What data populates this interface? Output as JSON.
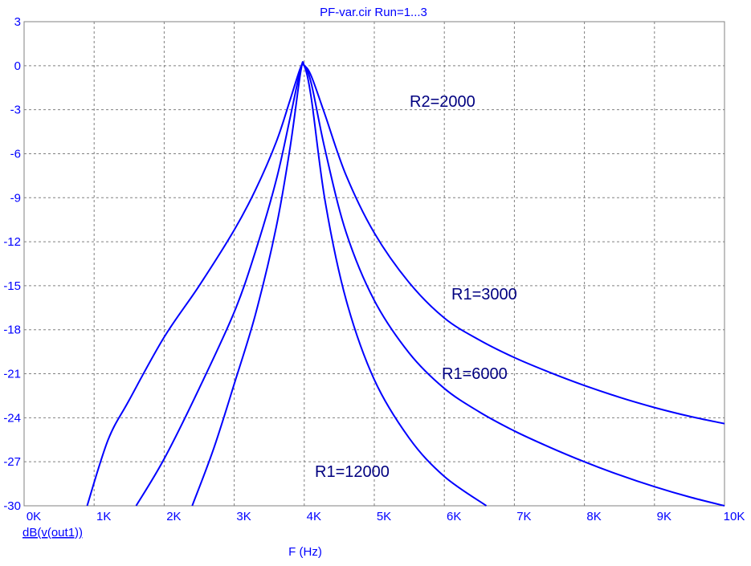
{
  "chart_data": {
    "type": "line",
    "title": "PF-var.cir Run=1...3",
    "xlabel": "F (Hz)",
    "ylabel": "",
    "trace_label": "dB(v(out1))",
    "xlim": [
      0,
      10000
    ],
    "ylim": [
      -30,
      3
    ],
    "x_ticks": [
      0,
      1000,
      2000,
      3000,
      4000,
      5000,
      6000,
      7000,
      8000,
      9000,
      10000
    ],
    "x_tick_labels": [
      "0K",
      "1K",
      "2K",
      "3K",
      "4K",
      "5K",
      "6K",
      "7K",
      "8K",
      "9K",
      "10K"
    ],
    "y_ticks": [
      3,
      0,
      -3,
      -6,
      -9,
      -12,
      -15,
      -18,
      -21,
      -24,
      -27,
      -30
    ],
    "y_tick_labels": [
      "3",
      "0",
      "-3",
      "-6",
      "-9",
      "-12",
      "-15",
      "-18",
      "-21",
      "-24",
      "-27",
      "-30"
    ],
    "grid": true,
    "line_color": "#0000ff",
    "series": [
      {
        "x": [
          900,
          1200,
          1500,
          2000,
          2500,
          3000,
          3300,
          3600,
          3800,
          3950,
          4000,
          4100,
          4300,
          4600,
          5000,
          5500,
          6000,
          6500,
          7000,
          7500,
          8000,
          8500,
          9000,
          9500,
          10000
        ],
        "values": [
          -30,
          -25.5,
          -22.8,
          -18.5,
          -15,
          -11.2,
          -8.5,
          -5.2,
          -2.3,
          -0.1,
          0,
          -0.7,
          -3.4,
          -7.5,
          -11.4,
          -14.8,
          -17.2,
          -18.7,
          -19.9,
          -20.9,
          -21.8,
          -22.6,
          -23.3,
          -23.9,
          -24.4
        ]
      },
      {
        "x": [
          1600,
          2000,
          2500,
          3000,
          3300,
          3600,
          3800,
          3950,
          4000,
          4100,
          4300,
          4600,
          5000,
          5500,
          6000,
          6500,
          7000,
          7500,
          8000,
          8500,
          9000,
          9500,
          10000
        ],
        "values": [
          -30,
          -26.8,
          -22,
          -16.8,
          -12.7,
          -7.8,
          -3.5,
          -0.2,
          0,
          -1.2,
          -5.8,
          -11.4,
          -16,
          -19.6,
          -22,
          -23.6,
          -24.9,
          -26,
          -27,
          -27.9,
          -28.7,
          -29.4,
          -30
        ]
      },
      {
        "x": [
          2400,
          2700,
          3000,
          3300,
          3600,
          3800,
          3950,
          4000,
          4100,
          4300,
          4600,
          5000,
          5500,
          6000,
          6600
        ],
        "values": [
          -30,
          -26.2,
          -21.7,
          -17,
          -11,
          -5.5,
          -0.4,
          0,
          -2.2,
          -9.3,
          -16,
          -21.4,
          -25.4,
          -28,
          -30
        ]
      }
    ],
    "annotations": [
      "R2=2000",
      "R1=3000",
      "R1=6000",
      "R1=12000"
    ]
  }
}
